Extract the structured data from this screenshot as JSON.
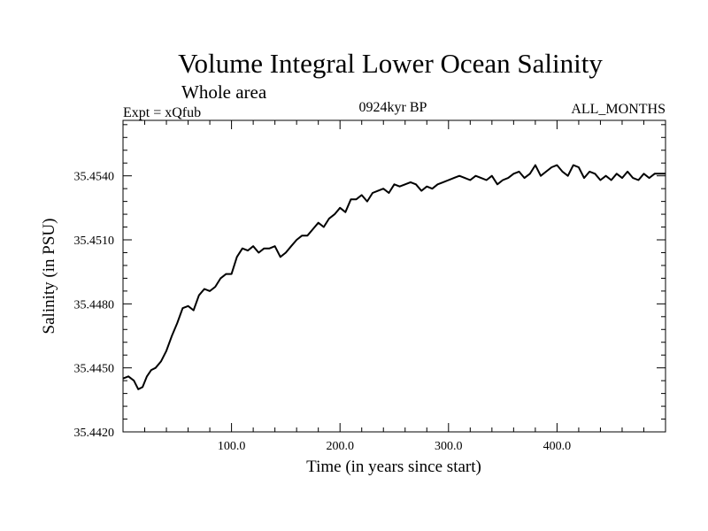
{
  "chart_data": {
    "type": "line",
    "title": "Volume Integral Lower Ocean Salinity",
    "subtitle": "Whole area",
    "experiment": "Expt = xQfub",
    "period": "0924kyr BP",
    "months": "ALL_MONTHS",
    "xlabel": "Time (in years since start)",
    "ylabel": "Salinity (in PSU)",
    "xlim": [
      0,
      500
    ],
    "ylim": [
      35.442,
      35.4566
    ],
    "x_ticks": [
      100,
      200,
      300,
      400
    ],
    "x_tick_labels": [
      "100.0",
      "200.0",
      "300.0",
      "400.0"
    ],
    "y_ticks": [
      35.442,
      35.445,
      35.448,
      35.451,
      35.454
    ],
    "y_tick_labels": [
      "35.4420",
      "35.4450",
      "35.4480",
      "35.4510",
      "35.4540"
    ],
    "grid": false,
    "series": [
      {
        "name": "Salinity",
        "x": [
          0,
          5,
          10,
          14,
          18,
          22,
          26,
          30,
          35,
          40,
          45,
          50,
          55,
          60,
          65,
          70,
          75,
          80,
          85,
          90,
          95,
          100,
          105,
          110,
          115,
          120,
          125,
          130,
          135,
          140,
          145,
          150,
          155,
          160,
          165,
          170,
          175,
          180,
          185,
          190,
          195,
          200,
          205,
          210,
          215,
          220,
          225,
          230,
          235,
          240,
          245,
          250,
          255,
          260,
          265,
          270,
          275,
          280,
          285,
          290,
          295,
          300,
          305,
          310,
          315,
          320,
          325,
          330,
          335,
          340,
          345,
          350,
          355,
          360,
          365,
          370,
          375,
          380,
          385,
          390,
          395,
          400,
          405,
          410,
          415,
          420,
          425,
          430,
          435,
          440,
          445,
          450,
          455,
          460,
          465,
          470,
          475,
          480,
          485,
          490,
          495,
          500
        ],
        "values": [
          35.4445,
          35.4446,
          35.4444,
          35.444,
          35.4441,
          35.4446,
          35.4449,
          35.445,
          35.4453,
          35.4458,
          35.4465,
          35.4471,
          35.4478,
          35.4479,
          35.4477,
          35.4484,
          35.4487,
          35.4486,
          35.4488,
          35.4492,
          35.4494,
          35.4494,
          35.4502,
          35.4506,
          35.4505,
          35.4507,
          35.4504,
          35.4506,
          35.4506,
          35.4507,
          35.4502,
          35.4504,
          35.4507,
          35.451,
          35.4512,
          35.4512,
          35.4515,
          35.4518,
          35.4516,
          35.452,
          35.4522,
          35.4525,
          35.4523,
          35.4529,
          35.4529,
          35.4531,
          35.4528,
          35.4532,
          35.4533,
          35.4534,
          35.4532,
          35.4536,
          35.4535,
          35.4536,
          35.4537,
          35.4536,
          35.4533,
          35.4535,
          35.4534,
          35.4536,
          35.4537,
          35.4538,
          35.4539,
          35.454,
          35.4539,
          35.4538,
          35.454,
          35.4539,
          35.4538,
          35.454,
          35.4536,
          35.4538,
          35.4539,
          35.4541,
          35.4542,
          35.4539,
          35.4541,
          35.4545,
          35.454,
          35.4542,
          35.4544,
          35.4545,
          35.4542,
          35.454,
          35.4545,
          35.4544,
          35.4539,
          35.4542,
          35.4541,
          35.4538,
          35.454,
          35.4538,
          35.4541,
          35.4539,
          35.4542,
          35.4539,
          35.4538,
          35.4541,
          35.4539,
          35.4541,
          35.4541,
          35.4541
        ]
      }
    ]
  }
}
